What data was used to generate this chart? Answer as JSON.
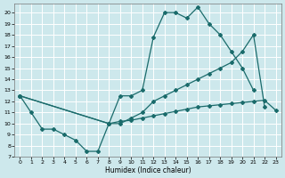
{
  "xlabel": "Humidex (Indice chaleur)",
  "bg_color": "#cde8ec",
  "grid_color": "#ffffff",
  "line_color": "#1a6b6b",
  "xlim": [
    -0.5,
    23.5
  ],
  "ylim": [
    7,
    20.8
  ],
  "xticks": [
    0,
    1,
    2,
    3,
    4,
    5,
    6,
    7,
    8,
    9,
    10,
    11,
    12,
    13,
    14,
    15,
    16,
    17,
    18,
    19,
    20,
    21,
    22,
    23
  ],
  "yticks": [
    7,
    8,
    9,
    10,
    11,
    12,
    13,
    14,
    15,
    16,
    17,
    18,
    19,
    20
  ],
  "c1x": [
    0,
    1,
    2,
    3,
    4,
    5,
    6,
    7,
    8,
    9,
    10,
    11,
    12,
    13,
    14,
    15,
    16,
    17,
    18,
    19,
    20,
    21
  ],
  "c1y": [
    12.5,
    11.0,
    9.5,
    9.5,
    9.0,
    8.5,
    7.5,
    7.5,
    10.0,
    12.5,
    12.5,
    13.0,
    17.8,
    20.0,
    20.0,
    19.5,
    20.5,
    19.0,
    18.0,
    16.5,
    15.0,
    13.0
  ],
  "c2x": [
    0,
    8,
    9,
    10,
    11,
    12,
    13,
    14,
    15,
    16,
    17,
    18,
    19,
    20,
    21,
    22
  ],
  "c2y": [
    12.5,
    10.0,
    10.0,
    10.5,
    11.0,
    12.0,
    12.5,
    13.0,
    13.5,
    14.0,
    14.5,
    15.0,
    15.5,
    16.5,
    18.0,
    11.5
  ],
  "c3x": [
    0,
    8,
    9,
    10,
    11,
    12,
    13,
    14,
    15,
    16,
    17,
    18,
    19,
    20,
    21,
    22,
    23
  ],
  "c3y": [
    12.5,
    10.0,
    10.2,
    10.3,
    10.5,
    10.7,
    10.9,
    11.1,
    11.3,
    11.5,
    11.6,
    11.7,
    11.8,
    11.9,
    12.0,
    12.1,
    11.2
  ]
}
